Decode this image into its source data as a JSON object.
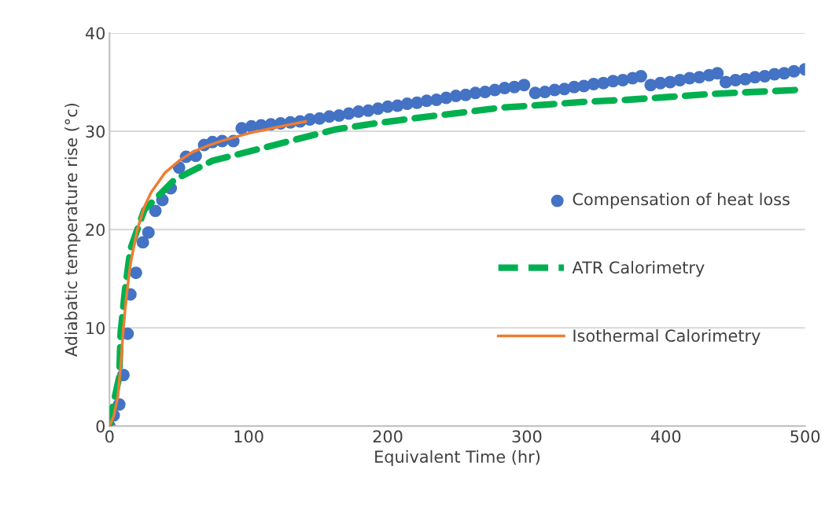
{
  "chart_data": {
    "type": "scatter",
    "xlabel": "Equivalent Time (hr)",
    "ylabel": "Adiabatic temperature rise (°c)",
    "xlim": [
      0,
      500
    ],
    "ylim": [
      0,
      40
    ],
    "xticks": [
      0,
      100,
      200,
      300,
      400,
      500
    ],
    "yticks": [
      0,
      10,
      20,
      30,
      40
    ],
    "grid": "y",
    "legend": "right",
    "series": [
      {
        "name": "Compensation of heat loss",
        "marker": "circle",
        "color": "#4472c4",
        "x": [
          0,
          3,
          7,
          10,
          13,
          15,
          19,
          24,
          28,
          33,
          38,
          44,
          50,
          55,
          62,
          68,
          74,
          81,
          89,
          95,
          102,
          109,
          116,
          123,
          130,
          137,
          144,
          151,
          158,
          165,
          172,
          179,
          186,
          193,
          200,
          207,
          214,
          221,
          228,
          235,
          242,
          249,
          256,
          263,
          270,
          277,
          284,
          291,
          298,
          306,
          313,
          320,
          327,
          334,
          341,
          348,
          355,
          362,
          369,
          376,
          382,
          389,
          396,
          403,
          410,
          417,
          424,
          431,
          437,
          443,
          450,
          457,
          464,
          471,
          478,
          485,
          492,
          500
        ],
        "values": [
          0,
          1.1,
          2.2,
          5.2,
          9.4,
          13.4,
          15.6,
          18.7,
          19.7,
          21.9,
          23,
          24.2,
          26.3,
          27.4,
          27.5,
          28.6,
          28.9,
          29,
          29,
          30.3,
          30.5,
          30.6,
          30.7,
          30.8,
          30.9,
          31.0,
          31.2,
          31.3,
          31.5,
          31.6,
          31.8,
          32.0,
          32.1,
          32.3,
          32.5,
          32.6,
          32.8,
          32.9,
          33.1,
          33.2,
          33.4,
          33.6,
          33.7,
          33.9,
          34.0,
          34.2,
          34.4,
          34.5,
          34.7,
          33.9,
          34.0,
          34.2,
          34.3,
          34.5,
          34.6,
          34.8,
          34.9,
          35.1,
          35.2,
          35.4,
          35.6,
          34.7,
          34.9,
          35.0,
          35.2,
          35.4,
          35.5,
          35.7,
          35.9,
          35.0,
          35.2,
          35.3,
          35.5,
          35.6,
          35.8,
          35.9,
          36.1,
          36.3
        ]
      },
      {
        "name": "ATR Calorimetry",
        "type": "line",
        "line_style": "dashed",
        "color": "#00b050",
        "x": [
          0,
          2.3,
          7,
          8,
          11,
          15,
          25,
          47,
          74,
          102,
          132,
          163,
          191,
          223,
          253,
          281,
          313,
          342,
          372,
          403,
          433,
          463,
          493,
          500
        ],
        "values": [
          0,
          2,
          5,
          9.5,
          13.7,
          18,
          22,
          25.1,
          27,
          28,
          29.1,
          30.2,
          30.8,
          31.4,
          31.9,
          32.4,
          32.7,
          33.0,
          33.2,
          33.5,
          33.8,
          34.0,
          34.2,
          34.2
        ]
      },
      {
        "name": "Isothermal Calorimetry",
        "type": "line",
        "line_style": "solid",
        "color": "#ed7d31",
        "x": [
          0,
          3,
          6,
          8,
          10,
          12,
          15,
          20,
          25,
          30,
          40,
          50,
          60,
          70,
          80,
          100,
          120,
          141
        ],
        "values": [
          0,
          1,
          3,
          6,
          10,
          13,
          16.5,
          20,
          22.3,
          23.8,
          25.8,
          27,
          27.9,
          28.5,
          29,
          29.8,
          30.4,
          31
        ]
      }
    ]
  }
}
